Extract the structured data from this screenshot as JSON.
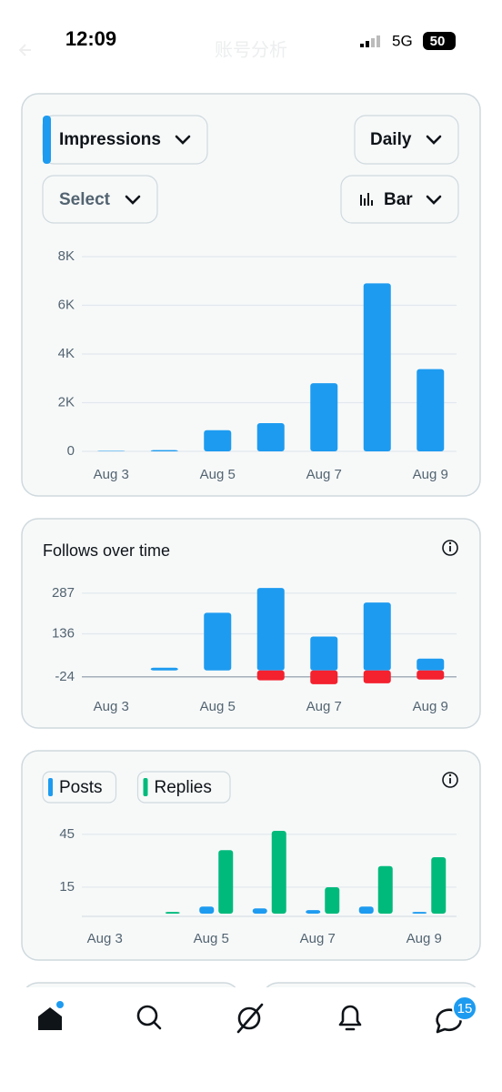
{
  "status": {
    "time": "12:09",
    "network": "5G",
    "battery": "50"
  },
  "header": {
    "title": "账号分析"
  },
  "controls": {
    "metric": "Impressions",
    "period": "Daily",
    "compare": "Select",
    "chart_kind": "Bar"
  },
  "chart_data": [
    {
      "type": "bar",
      "categories": [
        "Aug 3",
        null,
        "Aug 5",
        null,
        "Aug 7",
        null,
        "Aug 9"
      ],
      "values": [
        20,
        50,
        870,
        1160,
        2800,
        6900,
        3380
      ],
      "color": "#1d9bf0",
      "ylim": [
        0,
        8000
      ],
      "yticks": [
        0,
        {
          "value": 2000,
          "label": "2K"
        },
        {
          "value": 4000,
          "label": "4K"
        },
        {
          "value": 6000,
          "label": "6K"
        },
        {
          "value": 8000,
          "label": "8K"
        }
      ],
      "grid": true
    },
    {
      "type": "diverging-bar",
      "title": "Follows over time",
      "categories": [
        "Aug 3",
        null,
        "Aug 5",
        null,
        "Aug 7",
        null,
        "Aug 9"
      ],
      "series": [
        {
          "color": "#1d9bf0",
          "values": [
            0,
            10,
            214,
            306,
            126,
            252,
            44
          ]
        },
        {
          "color": "#f4212e",
          "values": [
            0,
            0,
            0,
            -37,
            -51,
            -48,
            -34
          ]
        }
      ],
      "ylim": [
        -55,
        310
      ],
      "yticks": [
        -24,
        136,
        287
      ],
      "grid": true
    },
    {
      "type": "grouped-bar",
      "categories": [
        "Aug 3",
        null,
        "Aug 5",
        null,
        "Aug 7",
        null,
        "Aug 9"
      ],
      "series": [
        {
          "name": "Posts",
          "color": "#1d9bf0",
          "values": [
            0,
            0,
            4,
            3,
            2,
            4,
            1
          ]
        },
        {
          "name": "Replies",
          "color": "#00ba7c",
          "values": [
            0,
            1,
            36,
            47,
            15,
            27,
            32
          ]
        }
      ],
      "ylim": [
        0,
        48
      ],
      "yticks": [
        15,
        45
      ],
      "grid": true
    }
  ],
  "nav": {
    "badge": "15"
  }
}
